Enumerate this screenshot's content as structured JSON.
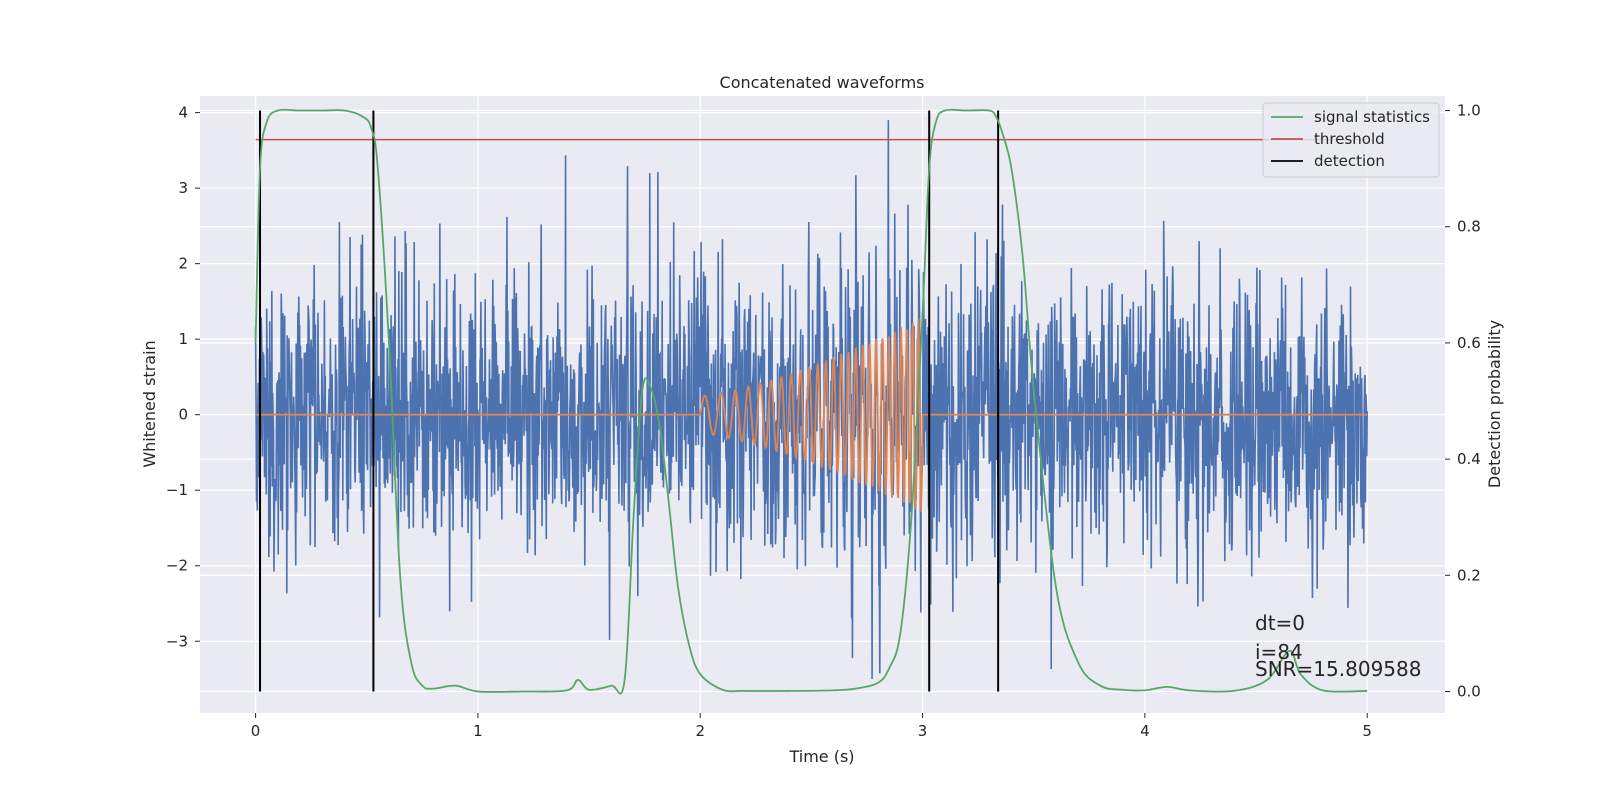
{
  "chart_data": {
    "type": "line",
    "title": "Concatenated waveforms",
    "xlabel": "Time (s)",
    "ylabel": "Whitened strain",
    "ylabel_right": "Detection probability",
    "xlim": [
      -0.25,
      5.35
    ],
    "ylim": [
      -3.95,
      4.22
    ],
    "ylim_right": [
      -0.037,
      1.025
    ],
    "x_ticks": [
      "0",
      "1",
      "2",
      "3",
      "4",
      "5"
    ],
    "y_ticks": [
      "4",
      "3",
      "2",
      "1",
      "0",
      "−1",
      "−2",
      "−3"
    ],
    "y_ticks_right": [
      "1.0",
      "0.8",
      "0.6",
      "0.4",
      "0.2",
      "0.0"
    ],
    "grid": true,
    "legend_position": "top-right",
    "series": [
      {
        "name": "",
        "axis": "left",
        "kind": "noise",
        "color": "#4c72b0",
        "x_range": [
          0,
          5
        ],
        "sample_rate": 2048,
        "typical_std": 0.9,
        "approx_y_range": [
          -3.5,
          3.9
        ]
      },
      {
        "name": "",
        "axis": "left",
        "kind": "chirp",
        "color": "#dd8452",
        "baseline": 0,
        "chirp_x_range": [
          2.0,
          3.0
        ],
        "peak_amplitude": 1.3
      },
      {
        "name": "signal statistics",
        "axis": "right",
        "color": "#55a868",
        "x": [
          0,
          0.02,
          0.05,
          0.1,
          0.2,
          0.3,
          0.4,
          0.48,
          0.52,
          0.55,
          0.6,
          0.65,
          0.7,
          0.75,
          0.8,
          0.9,
          1.0,
          1.2,
          1.4,
          1.45,
          1.5,
          1.6,
          1.66,
          1.7,
          1.74,
          1.78,
          1.82,
          1.86,
          1.9,
          1.95,
          2.0,
          2.1,
          2.2,
          2.4,
          2.6,
          2.7,
          2.8,
          2.85,
          2.9,
          2.95,
          3.0,
          3.03,
          3.06,
          3.1,
          3.2,
          3.3,
          3.33,
          3.36,
          3.4,
          3.45,
          3.5,
          3.6,
          3.7,
          3.8,
          3.9,
          4.0,
          4.1,
          4.2,
          4.4,
          4.55,
          4.65,
          4.7,
          4.8,
          5.0
        ],
        "y": [
          0.6,
          0.9,
          0.98,
          1.0,
          1.0,
          1.0,
          1.0,
          0.99,
          0.97,
          0.9,
          0.6,
          0.2,
          0.05,
          0.01,
          0.005,
          0.01,
          0.0,
          0.0,
          0.002,
          0.02,
          0.003,
          0.01,
          0.02,
          0.3,
          0.52,
          0.52,
          0.45,
          0.32,
          0.18,
          0.08,
          0.03,
          0.003,
          0.001,
          0.001,
          0.002,
          0.005,
          0.015,
          0.04,
          0.1,
          0.3,
          0.65,
          0.9,
          0.98,
          1.0,
          1.0,
          1.0,
          0.99,
          0.96,
          0.9,
          0.75,
          0.52,
          0.18,
          0.05,
          0.01,
          0.003,
          0.002,
          0.008,
          0.002,
          0.001,
          0.02,
          0.07,
          0.03,
          0.002,
          0.001
        ]
      },
      {
        "name": "threshold",
        "axis": "right",
        "color": "#c44e52",
        "value": 0.95,
        "x_range": [
          0,
          5
        ]
      },
      {
        "name": "detection",
        "axis": "right",
        "color": "#000000",
        "x_positions": [
          0.02,
          0.53,
          3.03,
          3.34
        ],
        "y_range": [
          0,
          1
        ]
      }
    ],
    "annotations": [
      "dt=0",
      "i=84",
      "SNR=15.809588"
    ]
  },
  "colors": {
    "axes_background": "#eaeaf2",
    "grid": "#ffffff",
    "text": "#262626"
  }
}
